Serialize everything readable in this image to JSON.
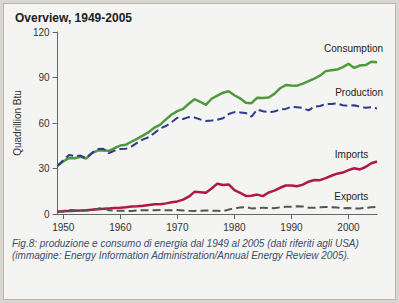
{
  "chart_data": {
    "type": "line",
    "title": "Overview, 1949-2005",
    "y_label": "Quadrillion Btu",
    "caption": "Fig.8: produzione e consumo di energia dal 1949 al 2005 (dati riferiti agli USA) (immagine: Energy Information Administration/Annual Energy Review 2005).",
    "x": [
      1949,
      1950,
      1951,
      1952,
      1953,
      1954,
      1955,
      1956,
      1957,
      1958,
      1959,
      1960,
      1961,
      1962,
      1963,
      1964,
      1965,
      1966,
      1967,
      1968,
      1969,
      1970,
      1971,
      1972,
      1973,
      1974,
      1975,
      1976,
      1977,
      1978,
      1979,
      1980,
      1981,
      1982,
      1983,
      1984,
      1985,
      1986,
      1987,
      1988,
      1989,
      1990,
      1991,
      1992,
      1993,
      1994,
      1995,
      1996,
      1997,
      1998,
      1999,
      2000,
      2001,
      2002,
      2003,
      2004,
      2005
    ],
    "xlim": [
      1949,
      2005
    ],
    "xticks": [
      1950,
      1960,
      1970,
      1980,
      1990,
      2000
    ],
    "ylim": [
      0,
      120
    ],
    "yticks": [
      0,
      30,
      60,
      90,
      120
    ],
    "grid": false,
    "series": [
      {
        "name": "Consumption",
        "color": "#4e9a3c",
        "line_style": "solid",
        "values": [
          32.0,
          34.6,
          37.0,
          36.8,
          37.7,
          36.6,
          40.2,
          41.8,
          41.8,
          41.7,
          43.5,
          45.1,
          45.7,
          47.8,
          49.7,
          51.8,
          54.0,
          57.0,
          58.9,
          62.4,
          65.6,
          67.8,
          69.3,
          72.7,
          75.7,
          74.0,
          72.0,
          76.0,
          78.0,
          80.0,
          80.9,
          78.3,
          76.3,
          73.3,
          73.1,
          76.7,
          76.5,
          76.8,
          79.2,
          82.9,
          85.0,
          84.7,
          84.6,
          86.0,
          87.6,
          89.3,
          91.2,
          94.2,
          94.8,
          95.2,
          96.8,
          99.0,
          96.3,
          97.9,
          98.2,
          100.4,
          100.0
        ]
      },
      {
        "name": "Production",
        "color": "#2f3a8f",
        "line_style": "dashed",
        "values": [
          31.7,
          35.5,
          38.9,
          38.3,
          38.4,
          36.9,
          40.1,
          42.8,
          43.0,
          40.1,
          41.8,
          42.8,
          43.1,
          44.6,
          47.1,
          49.2,
          50.7,
          53.5,
          56.4,
          58.0,
          60.5,
          63.5,
          62.6,
          63.9,
          63.6,
          62.4,
          61.4,
          61.6,
          62.1,
          63.1,
          65.9,
          67.2,
          67.0,
          66.6,
          64.2,
          68.9,
          67.7,
          67.2,
          67.6,
          68.9,
          69.3,
          70.7,
          70.4,
          69.9,
          68.3,
          70.7,
          71.2,
          72.5,
          72.5,
          72.9,
          71.7,
          71.3,
          71.7,
          70.7,
          70.0,
          70.4,
          69.6
        ]
      },
      {
        "name": "Imports",
        "color": "#b0174a",
        "line_style": "solid",
        "values": [
          1.5,
          1.9,
          1.9,
          2.2,
          2.3,
          2.4,
          2.8,
          3.2,
          3.4,
          3.7,
          4.0,
          4.2,
          4.5,
          4.9,
          5.1,
          5.4,
          5.9,
          6.4,
          6.4,
          7.0,
          7.7,
          8.3,
          9.5,
          11.4,
          14.6,
          14.3,
          14.0,
          16.8,
          20.0,
          19.1,
          19.5,
          15.8,
          14.0,
          11.9,
          12.0,
          12.8,
          11.8,
          14.2,
          15.4,
          17.3,
          18.8,
          18.8,
          18.3,
          19.4,
          21.3,
          22.4,
          22.3,
          23.7,
          25.2,
          26.6,
          27.3,
          28.9,
          30.2,
          29.4,
          31.0,
          33.5,
          34.6
        ]
      },
      {
        "name": "Exports",
        "color": "#555555",
        "line_style": "dashed",
        "values": [
          1.6,
          1.5,
          2.6,
          2.4,
          2.3,
          2.3,
          2.8,
          3.4,
          4.1,
          2.5,
          2.1,
          2.1,
          2.1,
          2.0,
          2.4,
          2.5,
          2.4,
          2.4,
          2.7,
          2.5,
          2.4,
          2.7,
          2.3,
          2.1,
          2.0,
          2.2,
          2.3,
          2.2,
          2.1,
          1.9,
          2.9,
          3.7,
          4.3,
          4.6,
          3.7,
          3.8,
          4.2,
          4.0,
          3.8,
          4.4,
          4.7,
          4.8,
          5.1,
          4.9,
          4.2,
          4.1,
          4.5,
          4.6,
          4.5,
          4.3,
          3.7,
          4.0,
          3.7,
          3.7,
          4.0,
          4.4,
          4.6
        ]
      }
    ]
  }
}
